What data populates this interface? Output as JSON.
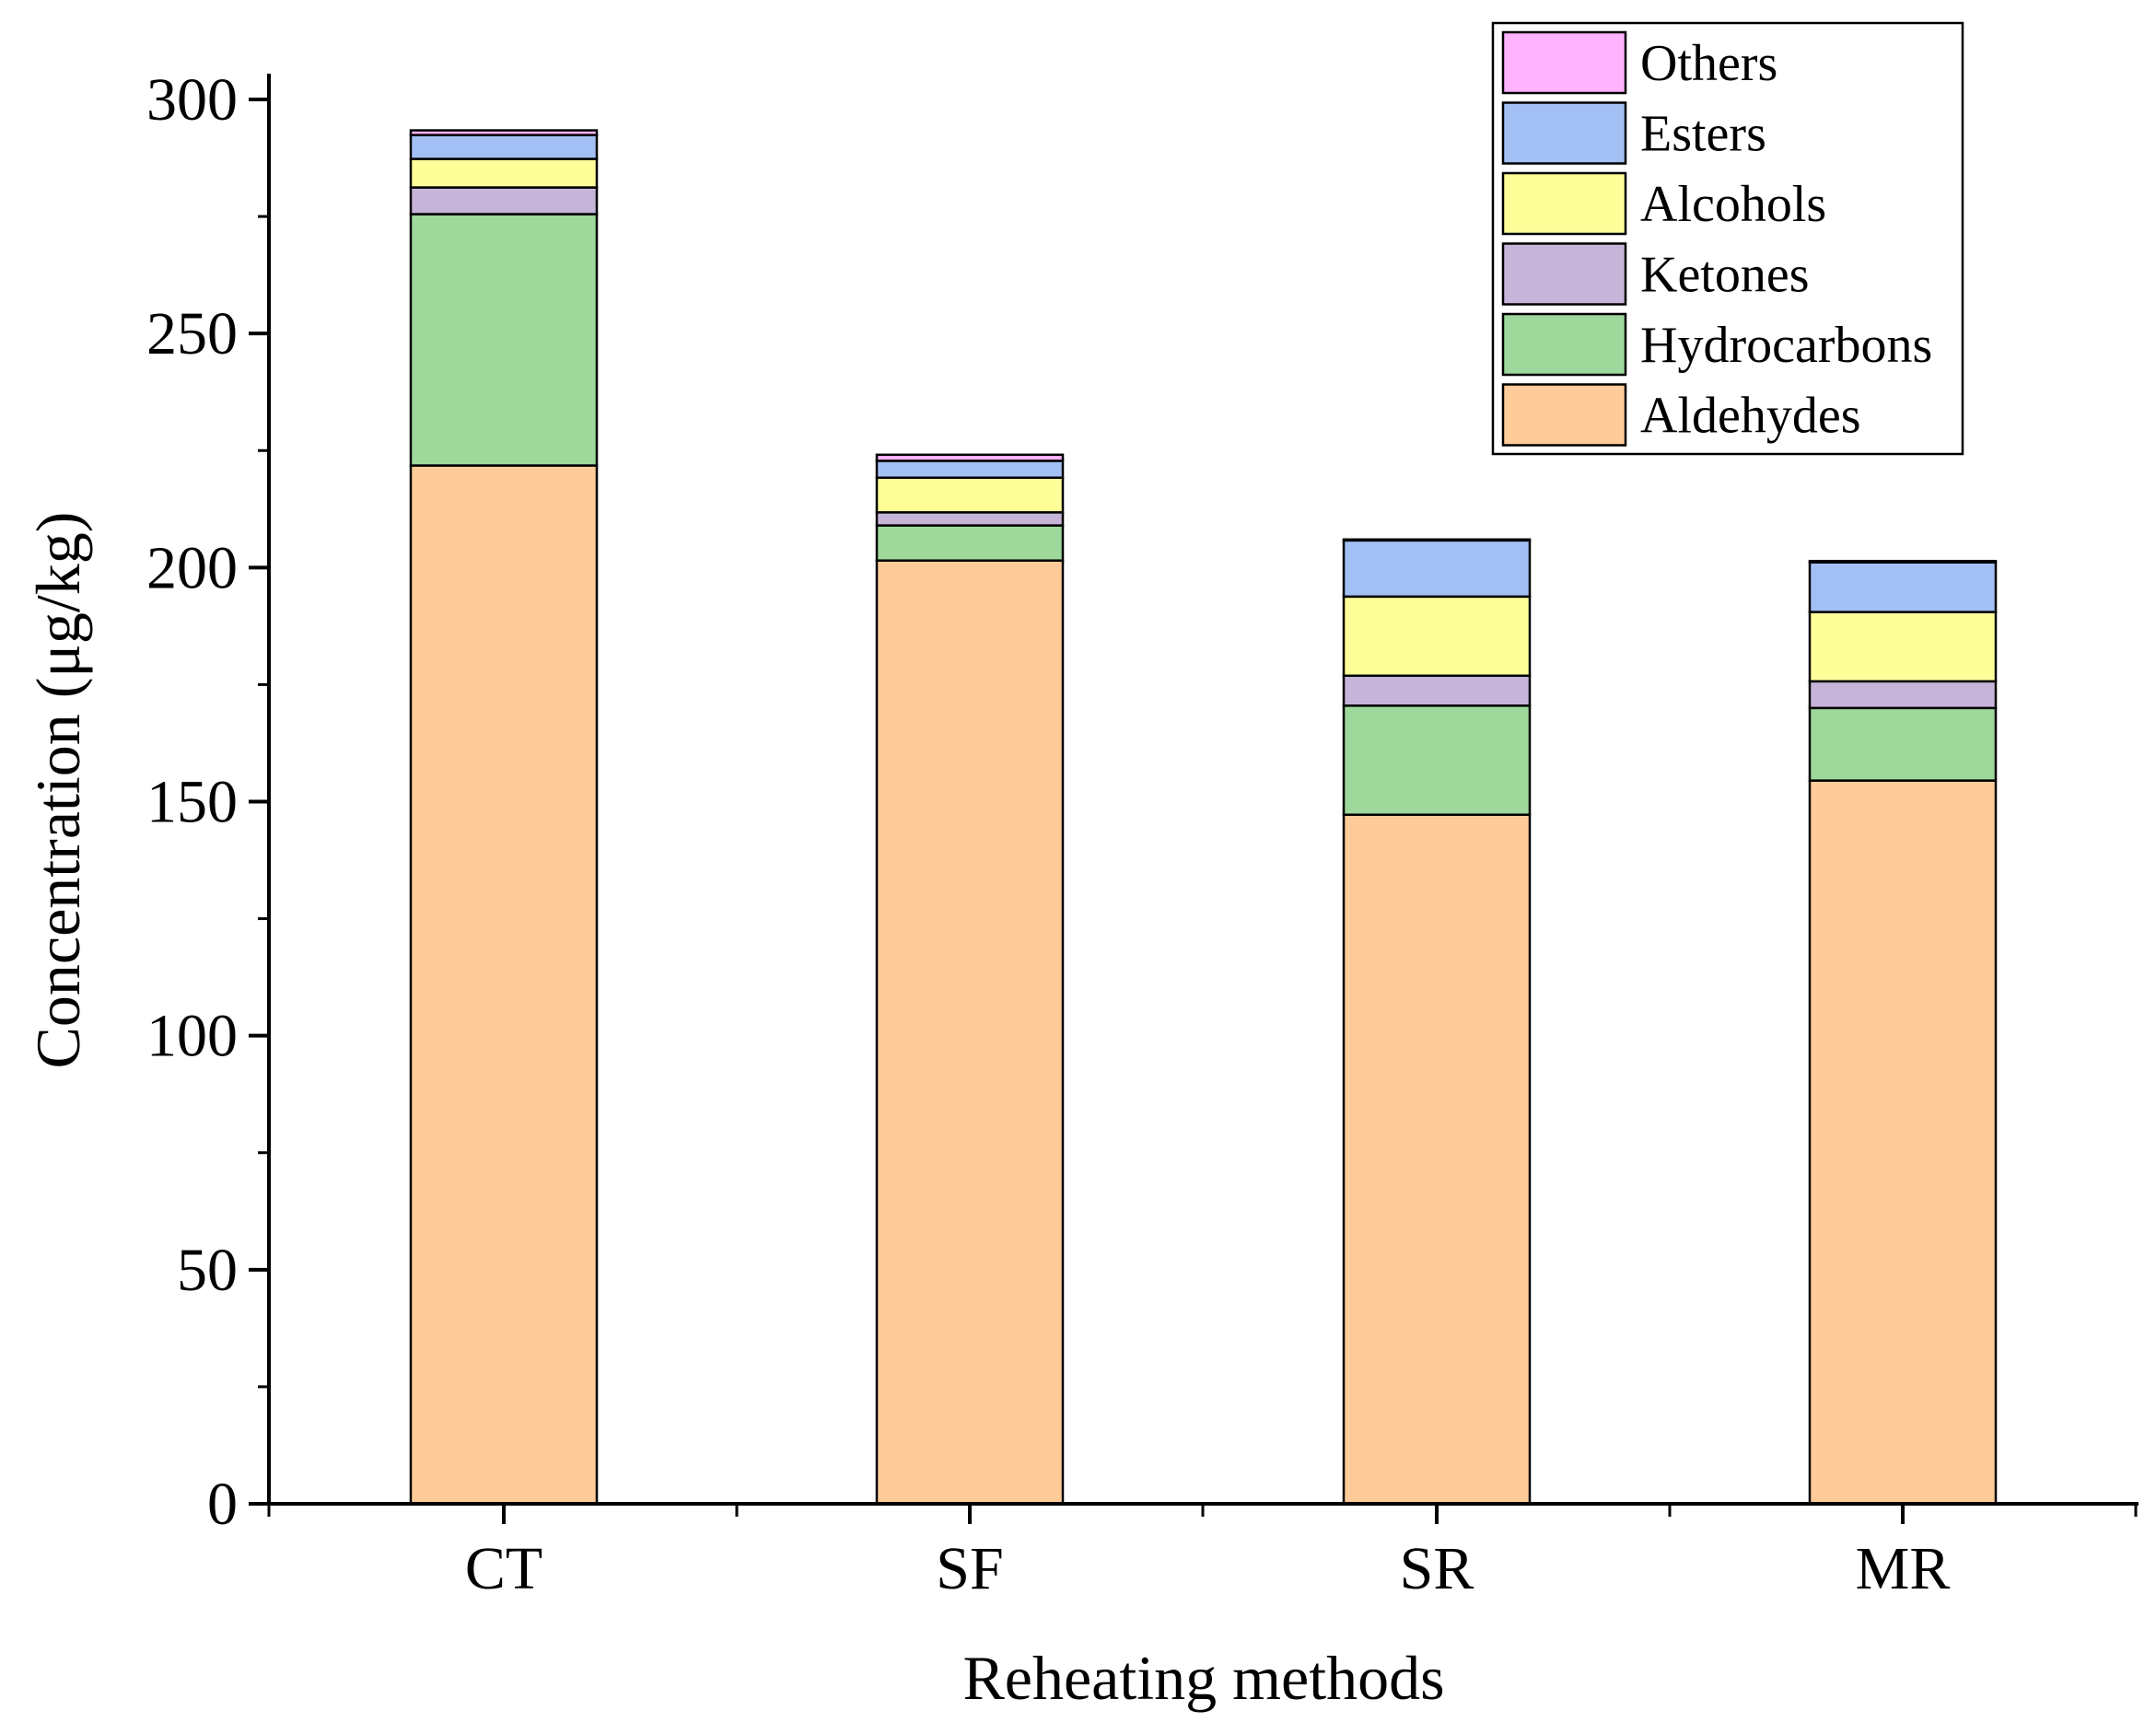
{
  "chart_data": {
    "type": "bar",
    "stacked": true,
    "title": "",
    "xlabel": "Reheating methods",
    "ylabel": "Concentration (μg/kg)",
    "ylim": [
      0,
      300
    ],
    "yticks": [
      0,
      50,
      100,
      150,
      200,
      250,
      300
    ],
    "categories": [
      "CT",
      "SF",
      "SR",
      "MR"
    ],
    "series": [
      {
        "name": "Aldehydes",
        "color": "#FFCC99",
        "values": [
          221.8,
          201.5,
          147.2,
          154.5
        ]
      },
      {
        "name": "Hydrocarbons",
        "color": "#9ED89A",
        "values": [
          53.7,
          7.5,
          23.3,
          15.5
        ]
      },
      {
        "name": "Ketones",
        "color": "#C6B5D8",
        "values": [
          5.7,
          2.8,
          6.4,
          5.7
        ]
      },
      {
        "name": "Alcohols",
        "color": "#FFFF99",
        "values": [
          6.1,
          7.4,
          16.9,
          14.8
        ]
      },
      {
        "name": "Esters",
        "color": "#A3C0F5",
        "values": [
          5.1,
          3.6,
          12.0,
          10.6
        ]
      },
      {
        "name": "Others",
        "color": "#FFB3FF",
        "values": [
          1.0,
          1.3,
          0.2,
          0.3
        ]
      }
    ],
    "legend": {
      "position": "top-right",
      "order": [
        "Others",
        "Esters",
        "Alcohols",
        "Ketones",
        "Hydrocarbons",
        "Aldehydes"
      ]
    },
    "grid": false
  }
}
